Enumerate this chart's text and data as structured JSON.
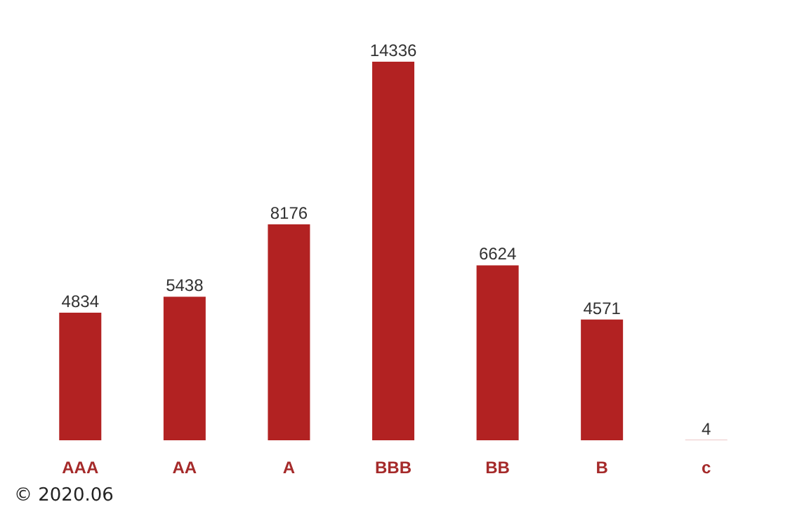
{
  "chart_data": {
    "type": "bar",
    "categories": [
      "AAA",
      "AA",
      "A",
      "BBB",
      "BB",
      "B",
      "c"
    ],
    "values": [
      4834,
      5438,
      8176,
      14336,
      6624,
      4571,
      4
    ],
    "color": "#b22222",
    "data_labels": true,
    "annotations": [
      "© 2020.06"
    ]
  }
}
